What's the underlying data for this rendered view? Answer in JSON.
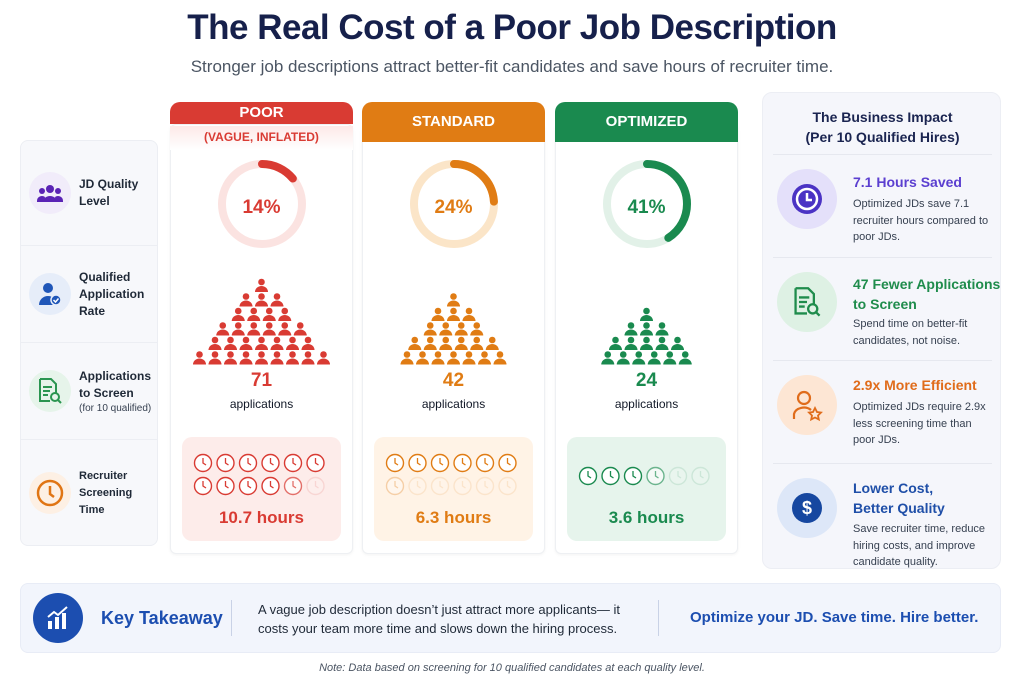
{
  "title": "The Real Cost of a Poor Job Description",
  "subtitle": "Stronger job descriptions attract better-fit candidates and save hours of recruiter time.",
  "row_labels": [
    {
      "label": "JD Quality Level",
      "icon": "people-group-icon"
    },
    {
      "label": "Qualified Application Rate",
      "icon": "user-check-icon"
    },
    {
      "label": "Applications to Screen",
      "sub": "(for 10 qualified)",
      "icon": "document-search-icon"
    },
    {
      "label": "Recruiter Screening Time",
      "icon": "clock-icon"
    }
  ],
  "columns": [
    {
      "name": "POOR",
      "sub": "(VAGUE, INFLATED)",
      "rate_pct": 14,
      "rate_label": "14%",
      "applications": "71",
      "applications_label": "applications",
      "hours_value": 10.7,
      "hours_label": "10.7 hours",
      "color": "#d93b33",
      "light": "#fdecea",
      "track": "#fbe3e1"
    },
    {
      "name": "STANDARD",
      "rate_pct": 24,
      "rate_label": "24%",
      "applications": "42",
      "applications_label": "applications",
      "hours_value": 6.3,
      "hours_label": "6.3 hours",
      "color": "#e07c14",
      "light": "#fff3e6",
      "track": "#fbe5c8"
    },
    {
      "name": "OPTIMIZED",
      "rate_pct": 41,
      "rate_label": "41%",
      "applications": "24",
      "applications_label": "applications",
      "hours_value": 3.6,
      "hours_label": "3.6 hours",
      "color": "#1a8a4f",
      "light": "#e6f4ec",
      "track": "#e2f1e8"
    }
  ],
  "impact": {
    "title": "The Business Impact",
    "subtitle": "(Per 10 Qualified Hires)",
    "items": [
      {
        "head": "7.1 Hours Saved",
        "body": "Optimized JDs save 7.1 recruiter hours compared to poor JDs.",
        "icon": "clock-icon",
        "color": "#5b3fd0"
      },
      {
        "head": "47 Fewer Applications to Screen",
        "body": "Spend time on better-fit candidates, not noise.",
        "icon": "document-search-icon",
        "color": "#1f8c4c"
      },
      {
        "head": "2.9x More Efficient",
        "body": "Optimized JDs require 2.9x less screening time than poor JDs.",
        "icon": "user-star-icon",
        "color": "#e06c1b"
      },
      {
        "head": "Lower Cost, Better Quality",
        "body": "Save recruiter time, reduce hiring costs, and improve candidate quality.",
        "icon": "dollar-icon",
        "color": "#1f4fa8"
      }
    ]
  },
  "takeaway": {
    "label": "Key Takeaway",
    "text": "A vague job description doesn’t just attract more applicants— it costs your team more time and slows down the hiring process.",
    "cta": "Optimize your JD. Save time. Hire better.",
    "icon": "chart-growth-icon"
  },
  "note": "Note: Data based on screening for 10 qualified candidates at each quality level."
}
